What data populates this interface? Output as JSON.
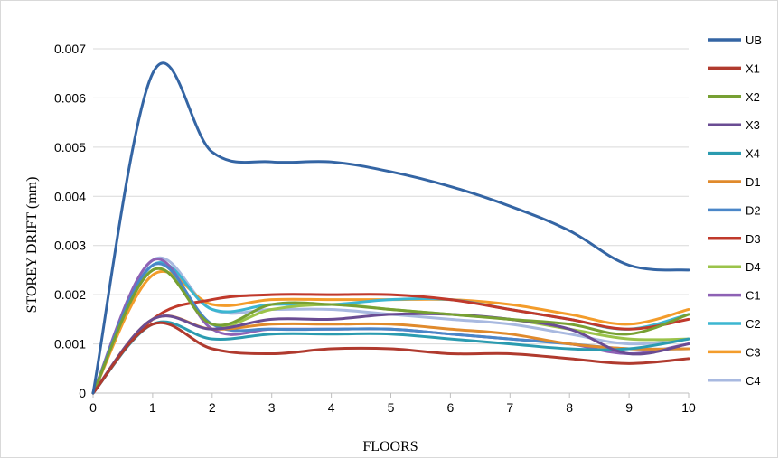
{
  "chart_data": {
    "type": "line",
    "xlabel": "FLOORS",
    "ylabel": "STOREY DRIFT (mm)",
    "x": [
      0,
      1,
      2,
      3,
      4,
      5,
      6,
      7,
      8,
      9,
      10
    ],
    "xlim": [
      0,
      10
    ],
    "ylim": [
      0,
      0.007
    ],
    "xticks": [
      "0",
      "1",
      "2",
      "3",
      "4",
      "5",
      "6",
      "7",
      "8",
      "9",
      "10"
    ],
    "yticks": [
      "0",
      "0.001",
      "0.002",
      "0.003",
      "0.004",
      "0.005",
      "0.006",
      "0.007"
    ],
    "grid": "horizontal",
    "legend_position": "right",
    "series": [
      {
        "name": "UB",
        "color": "#3465a4",
        "values": [
          0,
          0.0065,
          0.0049,
          0.0047,
          0.0047,
          0.0045,
          0.0042,
          0.0038,
          0.0033,
          0.0026,
          0.0025
        ]
      },
      {
        "name": "X1",
        "color": "#b03a2e",
        "values": [
          0,
          0.0014,
          0.0009,
          0.0008,
          0.0009,
          0.0009,
          0.0008,
          0.0008,
          0.0007,
          0.0006,
          0.0007
        ]
      },
      {
        "name": "X2",
        "color": "#77a033",
        "values": [
          0,
          0.0025,
          0.0014,
          0.0018,
          0.0018,
          0.0017,
          0.0016,
          0.0015,
          0.0014,
          0.0012,
          0.0016
        ]
      },
      {
        "name": "X3",
        "color": "#6a4c93",
        "values": [
          0,
          0.0015,
          0.0013,
          0.0015,
          0.0015,
          0.0016,
          0.0016,
          0.0015,
          0.0013,
          0.0008,
          0.001
        ]
      },
      {
        "name": "X4",
        "color": "#2b9bb0",
        "values": [
          0,
          0.0014,
          0.0011,
          0.0012,
          0.0012,
          0.0012,
          0.0011,
          0.001,
          0.0009,
          0.0009,
          0.0011
        ]
      },
      {
        "name": "D1",
        "color": "#e08a2c",
        "values": [
          0,
          0.0015,
          0.0013,
          0.0014,
          0.0014,
          0.0014,
          0.0013,
          0.0012,
          0.001,
          0.0009,
          0.0009
        ]
      },
      {
        "name": "D2",
        "color": "#4a86c8",
        "values": [
          0,
          0.0026,
          0.0014,
          0.0013,
          0.0013,
          0.0013,
          0.0012,
          0.0011,
          0.001,
          0.0009,
          0.0009
        ]
      },
      {
        "name": "D3",
        "color": "#c0392b",
        "values": [
          0,
          0.0015,
          0.0019,
          0.002,
          0.002,
          0.002,
          0.0019,
          0.0017,
          0.0015,
          0.0013,
          0.0015
        ]
      },
      {
        "name": "D4",
        "color": "#9bc34a",
        "values": [
          0,
          0.0025,
          0.0014,
          0.0017,
          0.0018,
          0.0017,
          0.0016,
          0.0015,
          0.0013,
          0.0011,
          0.0011
        ]
      },
      {
        "name": "C1",
        "color": "#8e62b5",
        "values": [
          0,
          0.0027,
          0.0013,
          0.0013,
          0.0013,
          0.0013,
          0.0012,
          0.0011,
          0.001,
          0.0008,
          0.001
        ]
      },
      {
        "name": "C2",
        "color": "#3cb6d1",
        "values": [
          0,
          0.0026,
          0.0017,
          0.0018,
          0.0018,
          0.0019,
          0.0019,
          0.0017,
          0.0015,
          0.0013,
          0.0016
        ]
      },
      {
        "name": "C3",
        "color": "#f39c2b",
        "values": [
          0,
          0.0024,
          0.0018,
          0.0019,
          0.0019,
          0.0019,
          0.0019,
          0.0018,
          0.0016,
          0.0014,
          0.0017
        ]
      },
      {
        "name": "C4",
        "color": "#a8b9e0",
        "values": [
          0,
          0.0027,
          0.0017,
          0.0017,
          0.0017,
          0.0016,
          0.0015,
          0.0014,
          0.0012,
          0.001,
          0.0011
        ]
      }
    ]
  }
}
